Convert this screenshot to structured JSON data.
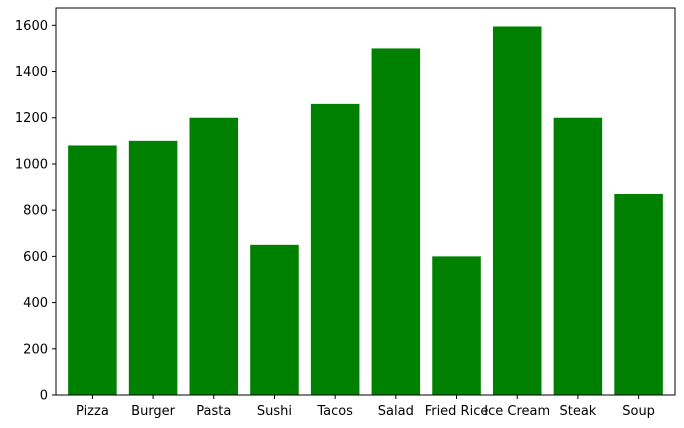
{
  "chart_data": {
    "type": "bar",
    "title": "",
    "xlabel": "",
    "ylabel": "",
    "categories": [
      "Pizza",
      "Burger",
      "Pasta",
      "Sushi",
      "Tacos",
      "Salad",
      "Fried Rice",
      "Ice Cream",
      "Steak",
      "Soup"
    ],
    "values": [
      1080,
      1100,
      1200,
      650,
      1260,
      1500,
      600,
      1595,
      1200,
      870
    ],
    "ylim": [
      0,
      1675
    ],
    "yticks": [
      0,
      200,
      400,
      600,
      800,
      1000,
      1200,
      1400,
      1600
    ],
    "bar_color": "#008000",
    "grid": false,
    "legend": "none"
  }
}
